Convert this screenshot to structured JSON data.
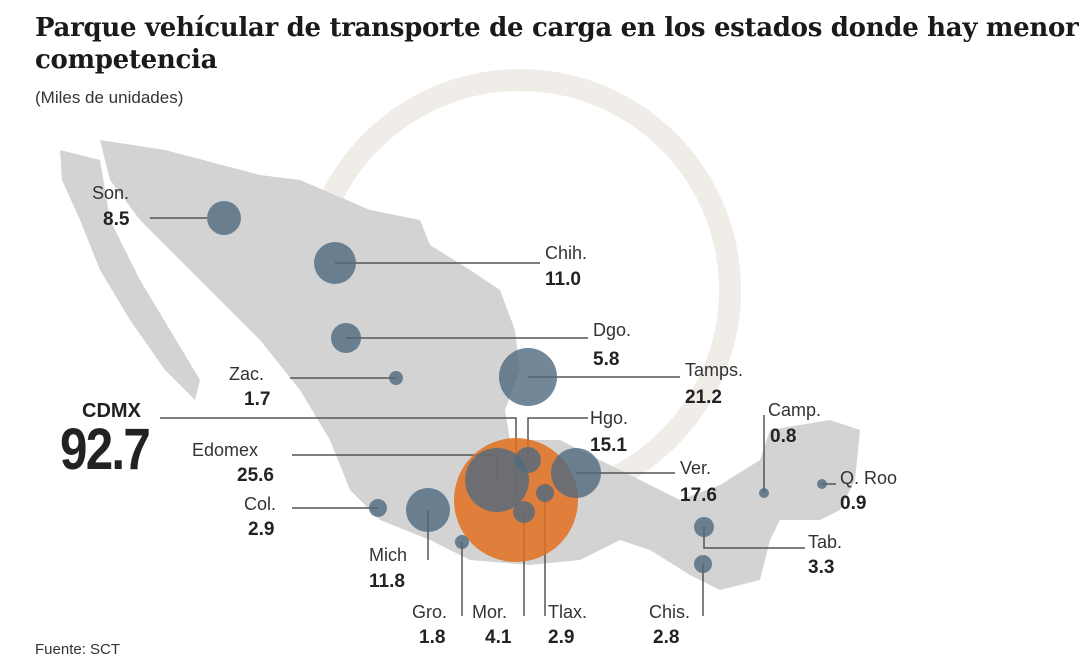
{
  "title": "Parque vehícular de transporte de carga en los estados donde hay menor competencia",
  "subtitle": "(Miles de unidades)",
  "source": "Fuente: SCT",
  "colors": {
    "map": "#d3d3d3",
    "bubble": "#4f6a80",
    "highlight": "#e07020",
    "line": "#555555"
  },
  "chart_data": {
    "type": "bubble-map",
    "unit": "Miles de unidades",
    "states": [
      {
        "name": "Son.",
        "value": "8.5"
      },
      {
        "name": "Chih.",
        "value": "11.0"
      },
      {
        "name": "Dgo.",
        "value": "5.8"
      },
      {
        "name": "Zac.",
        "value": "1.7"
      },
      {
        "name": "Tamps.",
        "value": "21.2"
      },
      {
        "name": "Hgo.",
        "value": "15.1"
      },
      {
        "name": "Edomex",
        "value": "25.6"
      },
      {
        "name": "Ver.",
        "value": "17.6"
      },
      {
        "name": "Col.",
        "value": "2.9"
      },
      {
        "name": "Mich",
        "value": "11.8"
      },
      {
        "name": "Gro.",
        "value": "1.8"
      },
      {
        "name": "Mor.",
        "value": "4.1"
      },
      {
        "name": "Tlax.",
        "value": "2.9"
      },
      {
        "name": "Chis.",
        "value": "2.8"
      },
      {
        "name": "Tab.",
        "value": "3.3"
      },
      {
        "name": "Camp.",
        "value": "0.8"
      },
      {
        "name": "Q. Roo",
        "value": "0.9"
      }
    ],
    "highlight": {
      "name": "CDMX",
      "value": "92.7"
    }
  }
}
